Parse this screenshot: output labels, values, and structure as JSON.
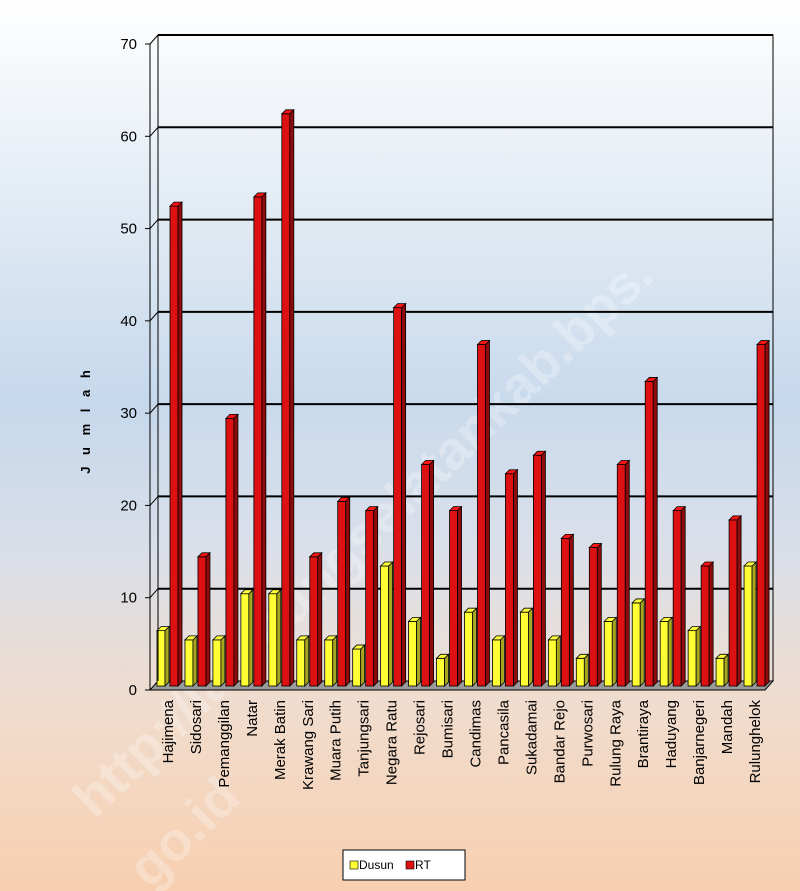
{
  "chart_data": {
    "type": "bar",
    "title": "",
    "xlabel": "",
    "ylabel": "J u m l a h",
    "ylim": [
      0,
      70
    ],
    "yticks": [
      0,
      10,
      20,
      30,
      40,
      50,
      60,
      70
    ],
    "grid": true,
    "legend_position": "bottom",
    "categories": [
      "Hajimena",
      "Sidosari",
      "Pemanggilan",
      "Natar",
      "Merak Batin",
      "Krawang Sari",
      "Muara Putih",
      "Tanjungsari",
      "Negara Ratu",
      "Rejosari",
      "Bumisari",
      "Candimas",
      "Pancasila",
      "Sukadamai",
      "Bandar Rejo",
      "Purwosari",
      "Rulung Raya",
      "Brantiraya",
      "Haduyang",
      "Banjarnegeri",
      "Mandah",
      "Rulunghelok"
    ],
    "series": [
      {
        "name": "Dusun",
        "color": "#ffff33",
        "values": [
          6,
          5,
          5,
          10,
          10,
          5,
          5,
          4,
          13,
          7,
          3,
          8,
          5,
          8,
          5,
          3,
          7,
          9,
          7,
          6,
          3,
          13
        ]
      },
      {
        "name": "RT",
        "color": "#dd1111",
        "values": [
          52,
          14,
          29,
          53,
          62,
          14,
          20,
          19,
          41,
          24,
          19,
          37,
          23,
          25,
          16,
          15,
          24,
          33,
          19,
          13,
          18,
          37
        ]
      }
    ]
  },
  "watermark": {
    "line1": "http://lampungselatankab.bps.",
    "line2": "go.id"
  }
}
